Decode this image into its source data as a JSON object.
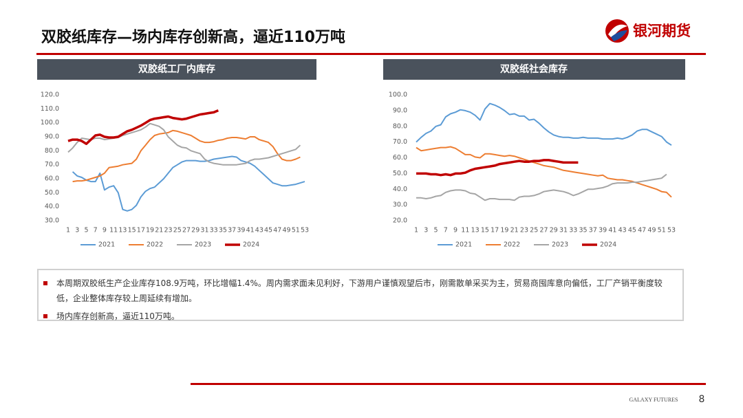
{
  "header": {
    "title": "双胶纸库存—场内库存创新高，逼近110万吨",
    "logo": "银河期货"
  },
  "chart_data": [
    {
      "type": "line",
      "title": "双胶纸工厂内库存",
      "x": [
        1,
        2,
        3,
        4,
        5,
        6,
        7,
        8,
        9,
        10,
        11,
        12,
        13,
        14,
        15,
        16,
        17,
        18,
        19,
        20,
        21,
        22,
        23,
        24,
        25,
        26,
        27,
        28,
        29,
        30,
        31,
        32,
        33,
        34,
        35,
        36,
        37,
        38,
        39,
        40,
        41,
        42,
        43,
        44,
        45,
        46,
        47,
        48,
        49,
        50,
        51,
        52,
        53
      ],
      "xlim": [
        1,
        53
      ],
      "xticks": [
        1,
        3,
        5,
        7,
        9,
        11,
        13,
        15,
        17,
        19,
        21,
        23,
        25,
        27,
        29,
        31,
        33,
        35,
        37,
        39,
        41,
        43,
        45,
        47,
        49,
        51,
        53
      ],
      "ylim": [
        30,
        120
      ],
      "yticks": [
        {
          "value": 30,
          "label": "30.0"
        },
        {
          "value": 40,
          "label": "40.0"
        },
        {
          "value": 50,
          "label": "50.0"
        },
        {
          "value": 60,
          "label": "60.0"
        },
        {
          "value": 70,
          "label": "70.0"
        },
        {
          "value": 80,
          "label": "80.0"
        },
        {
          "value": 90,
          "label": "90.0"
        },
        {
          "value": 100,
          "label": "100.0"
        },
        {
          "value": 110,
          "label": "110.0"
        },
        {
          "value": 120,
          "label": "120.0"
        }
      ],
      "legend": "bottom",
      "series": [
        {
          "name": "2021",
          "color": "#5b9bd5",
          "line_width": 2,
          "values": [
            null,
            65,
            62,
            61,
            59,
            58,
            58,
            64,
            52,
            54,
            55,
            50,
            38,
            37,
            38,
            41,
            47,
            51,
            53,
            54,
            57,
            60,
            64,
            68,
            70,
            72,
            73,
            73,
            73,
            72.5,
            72.5,
            73,
            74,
            74.5,
            75,
            75.5,
            76,
            75.5,
            73,
            72,
            71,
            69,
            66,
            63,
            60,
            57,
            56,
            55,
            55,
            55.5,
            56,
            57,
            58
          ]
        },
        {
          "name": "2022",
          "color": "#ed7d31",
          "line_width": 2,
          "values": [
            null,
            58,
            58.5,
            58.5,
            59,
            60,
            61,
            62,
            64,
            68,
            68.5,
            69,
            70,
            70.5,
            71,
            74,
            80,
            84,
            88,
            91,
            92,
            92.5,
            93,
            94.5,
            94,
            93,
            92,
            91,
            89,
            87,
            86,
            86,
            86.5,
            87.5,
            88,
            89,
            89.5,
            89.5,
            89,
            88.5,
            90,
            90,
            88,
            87,
            86,
            83,
            78,
            74,
            73,
            73,
            74,
            75.5,
            null
          ]
        },
        {
          "name": "2023",
          "color": "#a5a5a5",
          "line_width": 2,
          "values": [
            79,
            82,
            86,
            89,
            88.5,
            88,
            89,
            89,
            88,
            88.5,
            89,
            89.5,
            91,
            92,
            93,
            94,
            95,
            97,
            99.5,
            98.5,
            97.5,
            95,
            90,
            87,
            84,
            82.5,
            82,
            80,
            79,
            78,
            74,
            72,
            71,
            70.5,
            70,
            70,
            70,
            70,
            70.5,
            71,
            73,
            74,
            74,
            74.5,
            75,
            76,
            77,
            78,
            79,
            80,
            81,
            84,
            null
          ]
        },
        {
          "name": "2024",
          "color": "#c00000",
          "line_width": 3.5,
          "values": [
            87,
            88,
            88,
            87,
            85,
            88,
            91,
            91.5,
            90,
            89.5,
            89.5,
            90,
            92,
            94,
            95,
            96.5,
            98,
            100,
            102,
            103,
            103.5,
            104,
            104.5,
            103.5,
            103,
            102.5,
            103,
            104,
            105,
            106,
            106.5,
            107,
            107.5,
            108.9,
            null,
            null,
            null,
            null,
            null,
            null,
            null,
            null,
            null,
            null,
            null,
            null,
            null,
            null,
            null,
            null,
            null,
            null,
            null
          ]
        }
      ]
    },
    {
      "type": "line",
      "title": "双胶纸社会库存",
      "x": [
        1,
        2,
        3,
        4,
        5,
        6,
        7,
        8,
        9,
        10,
        11,
        12,
        13,
        14,
        15,
        16,
        17,
        18,
        19,
        20,
        21,
        22,
        23,
        24,
        25,
        26,
        27,
        28,
        29,
        30,
        31,
        32,
        33,
        34,
        35,
        36,
        37,
        38,
        39,
        40,
        41,
        42,
        43,
        44,
        45,
        46,
        47,
        48,
        49,
        50,
        51,
        52,
        53
      ],
      "xlim": [
        1,
        53
      ],
      "xticks": [
        1,
        3,
        5,
        7,
        9,
        11,
        13,
        15,
        17,
        19,
        21,
        23,
        25,
        27,
        29,
        31,
        33,
        35,
        37,
        39,
        41,
        43,
        45,
        47,
        49,
        51,
        53
      ],
      "ylim": [
        20,
        100
      ],
      "yticks": [
        {
          "value": 20,
          "label": "20.0"
        },
        {
          "value": 30,
          "label": "30.0"
        },
        {
          "value": 40,
          "label": "40.0"
        },
        {
          "value": 50,
          "label": "50.0"
        },
        {
          "value": 60,
          "label": "60.0"
        },
        {
          "value": 70,
          "label": "70.0"
        },
        {
          "value": 80,
          "label": "80.0"
        },
        {
          "value": 90,
          "label": "90.0"
        },
        {
          "value": 100,
          "label": "100.0"
        }
      ],
      "legend": "bottom",
      "series": [
        {
          "name": "2021",
          "color": "#5b9bd5",
          "line_width": 2,
          "values": [
            70,
            73,
            75.5,
            77,
            80,
            81,
            86,
            88,
            89,
            90.5,
            90,
            89,
            87,
            84,
            91,
            94.5,
            93.5,
            92,
            90,
            87.5,
            88,
            86.5,
            86.5,
            84,
            84.5,
            82,
            79,
            76.5,
            74.5,
            73.5,
            73,
            73,
            72.5,
            72.5,
            73,
            72.5,
            72.5,
            72.5,
            72,
            72,
            72,
            72.5,
            72,
            73,
            74.5,
            77,
            78,
            78,
            76.5,
            75,
            73.5,
            70,
            68
          ]
        },
        {
          "name": "2022",
          "color": "#ed7d31",
          "line_width": 2,
          "values": [
            66.5,
            64.5,
            65,
            65.5,
            66,
            66.5,
            66.5,
            67,
            66,
            64,
            62,
            62,
            60.5,
            60,
            62.5,
            62.5,
            62,
            61.5,
            61,
            61.5,
            61,
            60,
            59,
            58,
            57,
            56,
            55,
            54.5,
            54,
            53,
            52,
            51.5,
            51,
            50.5,
            50,
            49.5,
            49,
            48.5,
            49,
            47,
            46.5,
            46,
            46,
            45.5,
            45,
            44,
            43,
            42,
            41,
            40,
            38.5,
            38,
            35
          ]
        },
        {
          "name": "2023",
          "color": "#a5a5a5",
          "line_width": 2,
          "values": [
            34.5,
            34.5,
            34,
            34.5,
            35.5,
            36,
            38,
            39,
            39.5,
            39.5,
            39,
            37.5,
            37,
            35,
            33,
            34,
            34,
            33.5,
            33.5,
            33.5,
            33,
            35,
            35.5,
            35.5,
            36,
            37,
            38.5,
            39,
            39.5,
            39,
            38.5,
            37.5,
            36,
            37,
            38.5,
            40,
            40,
            40.5,
            41,
            42,
            43.5,
            44,
            44,
            44,
            44.5,
            44.5,
            45,
            45.5,
            46,
            46.5,
            47,
            49.5,
            null
          ]
        },
        {
          "name": "2024",
          "color": "#c00000",
          "line_width": 3.5,
          "values": [
            50,
            50,
            50,
            49.5,
            49.5,
            49,
            49.5,
            49,
            50,
            50,
            50.5,
            52,
            53,
            53.5,
            54,
            54.5,
            55,
            56,
            56.5,
            57,
            57.5,
            58,
            57.5,
            57.5,
            58,
            58,
            58.5,
            58.5,
            58,
            57.5,
            57,
            57,
            57,
            57,
            null,
            null,
            null,
            null,
            null,
            null,
            null,
            null,
            null,
            null,
            null,
            null,
            null,
            null,
            null,
            null,
            null,
            null,
            null
          ]
        }
      ]
    }
  ],
  "notes": [
    "本周期双胶纸生产企业库存108.9万吨，环比增幅1.4%。周内需求面未见利好，下游用户谨慎观望后市，刚需散单采买为主，贸易商囤库意向偏低，工厂产销平衡度较低，企业整体库存较上周延续有增加。",
    "场内库存创新高，逼近110万吨。"
  ],
  "footer": {
    "brand": "GALAXY FUTURES",
    "page": "8"
  }
}
